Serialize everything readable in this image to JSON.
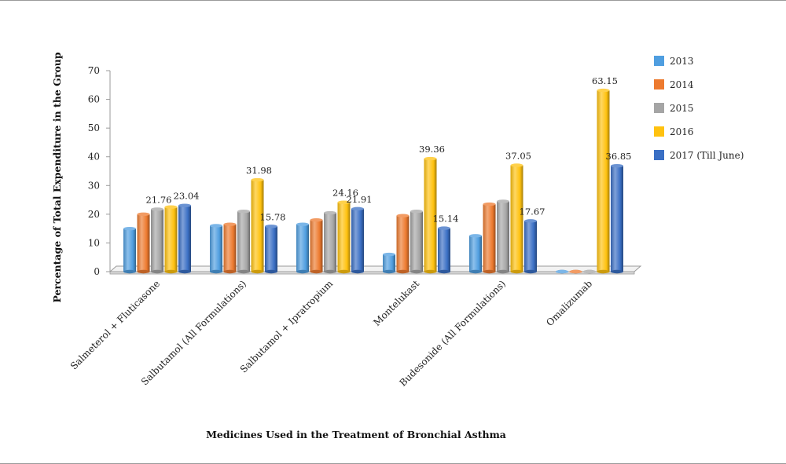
{
  "chart_data": {
    "type": "bar",
    "title": "",
    "xlabel": "Medicines Used in the Treatment of Bronchial Asthma",
    "ylabel": "Percentage of Total Expenditure in the Group",
    "ylim": [
      0,
      70
    ],
    "yticks": [
      "0",
      "10",
      "20",
      "30",
      "40",
      "50",
      "60",
      "70"
    ],
    "grid": false,
    "legend_position": "right",
    "categories": [
      "Salmeterol + Fluticasone",
      "Salbutamol (All Formulations)",
      "Salbutamol + Ipratropium",
      "Montelukast",
      "Budesonide (All Formulations)",
      "Omalizumab"
    ],
    "series": [
      {
        "name": "2013",
        "color": "#4f9ee0",
        "values": [
          15,
          16,
          16.5,
          6,
          12.5,
          0
        ]
      },
      {
        "name": "2014",
        "color": "#ed7a2f",
        "values": [
          20,
          16.5,
          18,
          19.5,
          23.5,
          0
        ]
      },
      {
        "name": "2015",
        "color": "#a5a5a5",
        "values": [
          21.76,
          21,
          20.5,
          21,
          24.5,
          0
        ]
      },
      {
        "name": "2016",
        "color": "#ffc20f",
        "values": [
          22.5,
          31.98,
          24.16,
          39.36,
          37.05,
          63.15
        ]
      },
      {
        "name": "2017 (Till June)",
        "color": "#3a6fc4",
        "values": [
          23.04,
          15.78,
          21.91,
          15.14,
          17.67,
          36.85
        ]
      }
    ],
    "data_labels": [
      {
        "category": 0,
        "series": 2,
        "text": "21.76"
      },
      {
        "category": 0,
        "series": 4,
        "text": "23.04"
      },
      {
        "category": 1,
        "series": 3,
        "text": "31.98"
      },
      {
        "category": 1,
        "series": 4,
        "text": "15.78"
      },
      {
        "category": 2,
        "series": 3,
        "text": "24.16"
      },
      {
        "category": 2,
        "series": 4,
        "text": "21.91"
      },
      {
        "category": 3,
        "series": 3,
        "text": "39.36"
      },
      {
        "category": 3,
        "series": 4,
        "text": "15.14"
      },
      {
        "category": 4,
        "series": 3,
        "text": "37.05"
      },
      {
        "category": 4,
        "series": 4,
        "text": "17.67"
      },
      {
        "category": 5,
        "series": 3,
        "text": "63.15"
      },
      {
        "category": 5,
        "series": 4,
        "text": "36.85"
      }
    ]
  }
}
